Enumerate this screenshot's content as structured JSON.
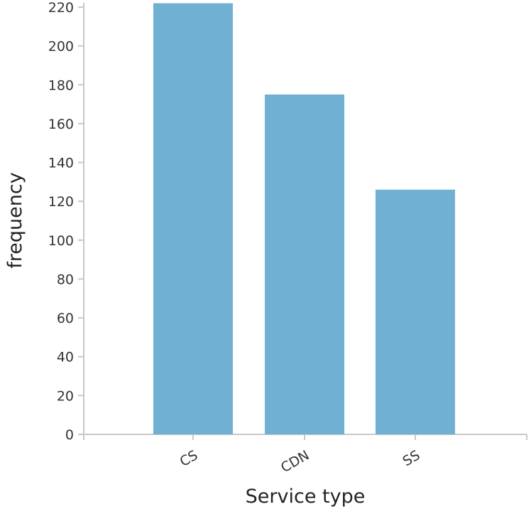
{
  "chart_data": {
    "type": "bar",
    "title": "",
    "xlabel": "Service type",
    "ylabel": "frequency",
    "categories": [
      "CS",
      "CDN",
      "SS"
    ],
    "values": [
      222,
      175,
      126
    ],
    "ylim": [
      0,
      220
    ],
    "yticks": [
      "0",
      "20",
      "40",
      "60",
      "80",
      "100",
      "120",
      "140",
      "160",
      "180",
      "200",
      "220"
    ],
    "bar_color": "#6fb0d3",
    "grid": false,
    "legend": "none"
  }
}
